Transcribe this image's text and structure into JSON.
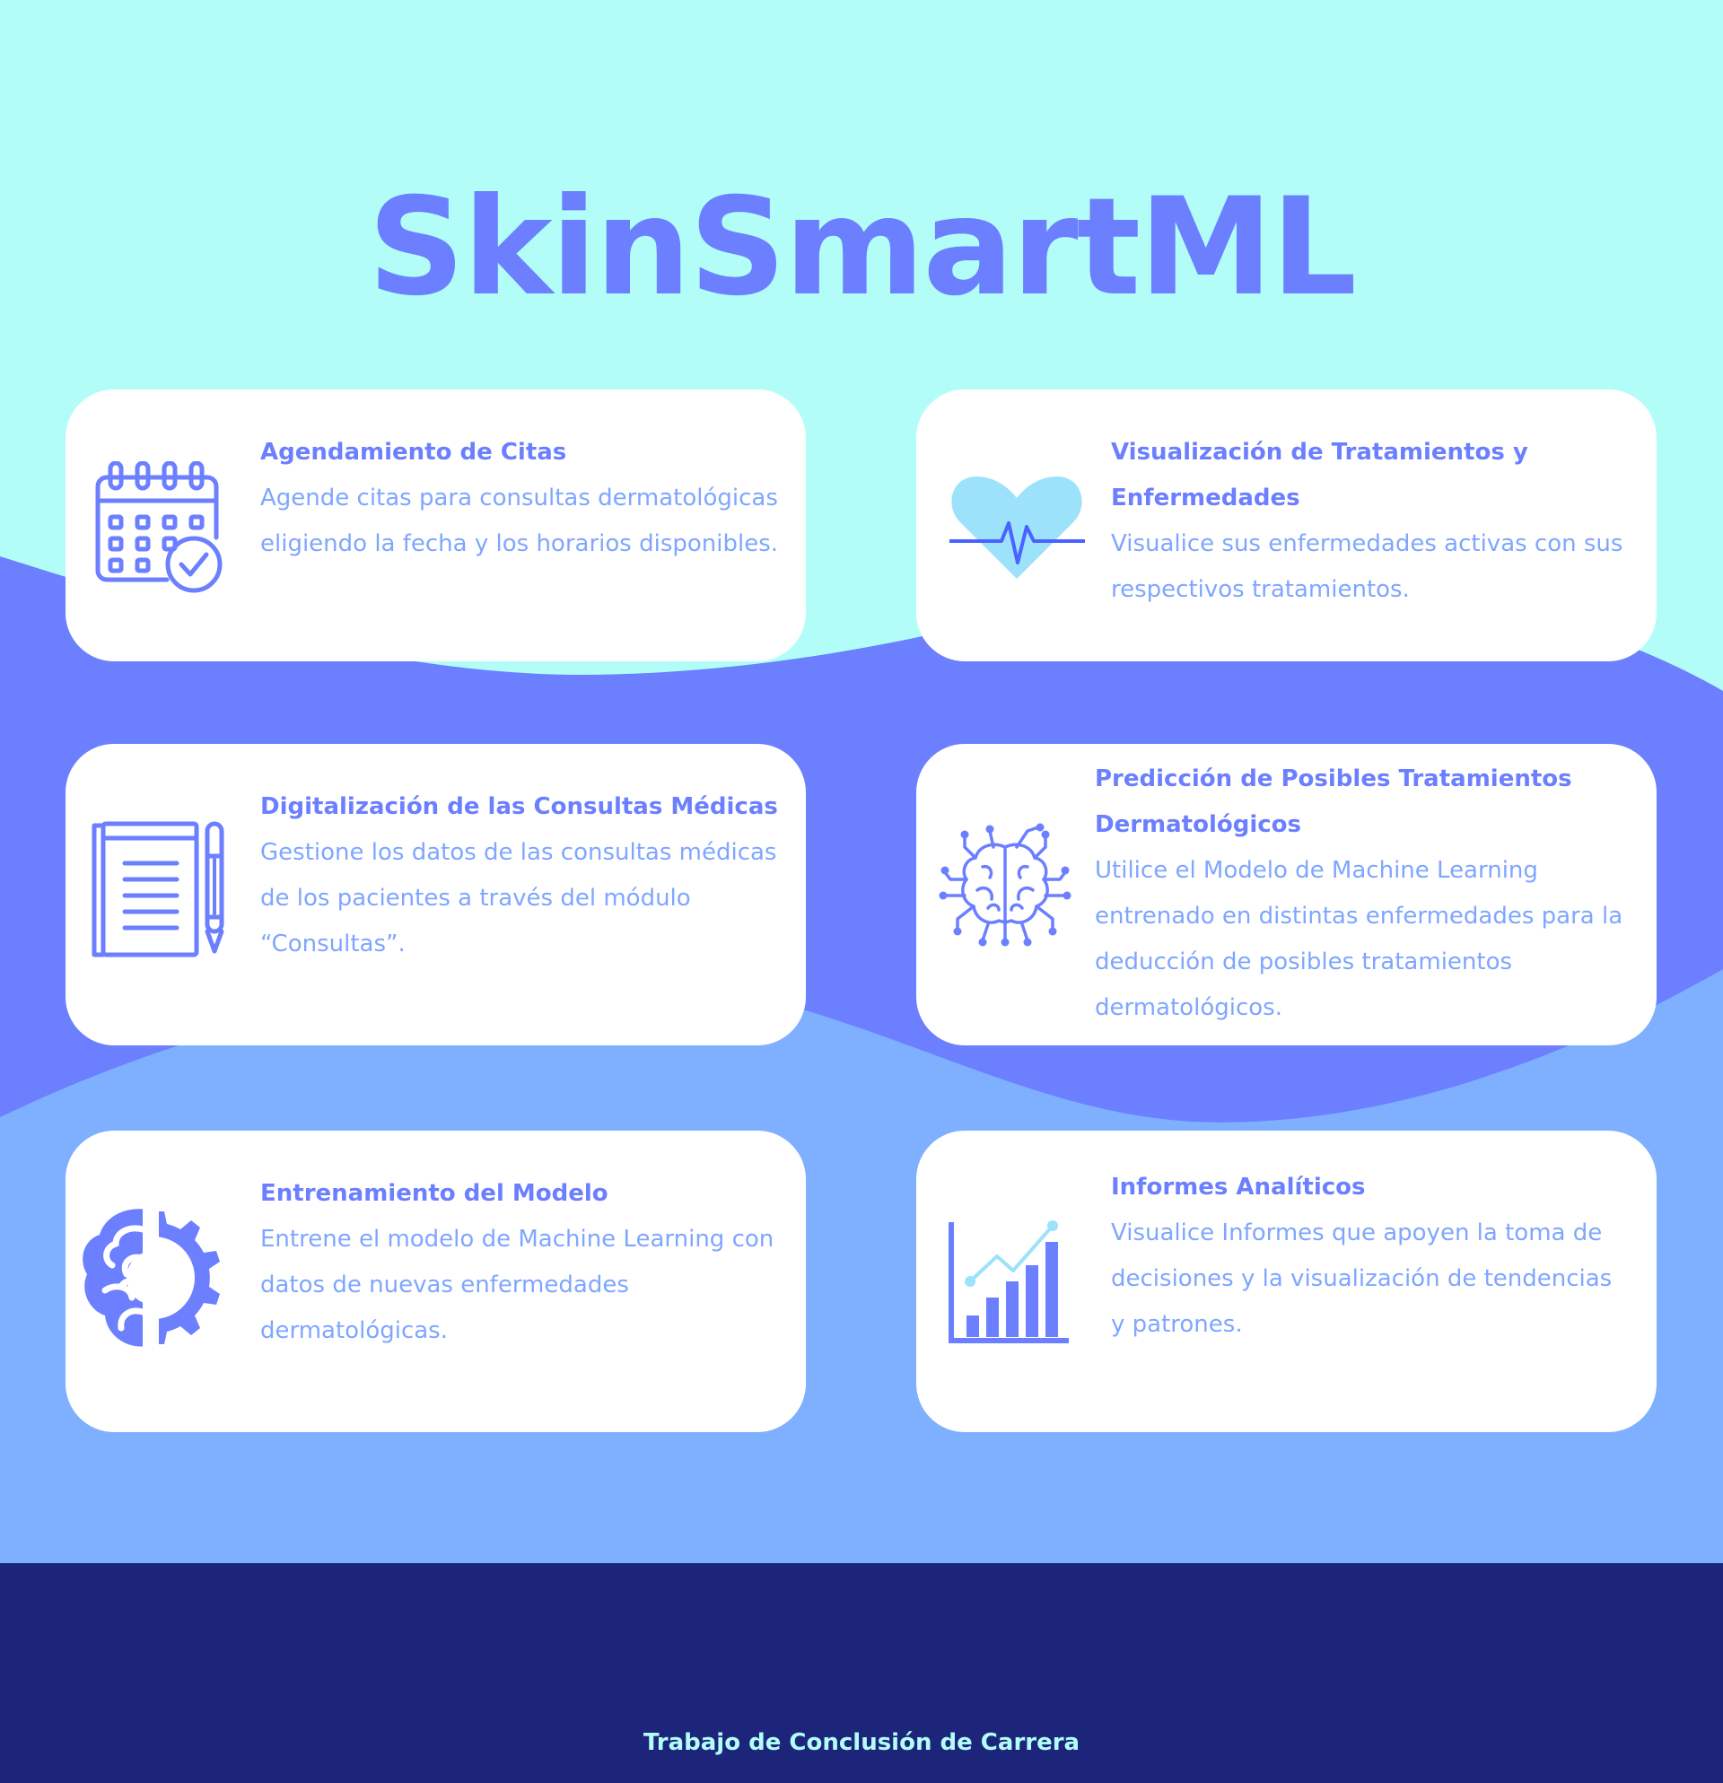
{
  "title": "SkinSmartML",
  "colors": {
    "top_bg": "#b3fdf8",
    "middle_wave": "#6b7fff",
    "lower_bg": "#7fb0ff",
    "footer_bg": "#1c257a",
    "accent": "#6b7fff",
    "body_text": "#7fa6ff"
  },
  "cards": [
    {
      "icon": "calendar-check-icon",
      "title": "Agendamiento de Citas",
      "description": "Agende citas para consultas dermatológicas eligiendo la fecha y los horarios disponibles."
    },
    {
      "icon": "heartbeat-icon",
      "title": "Visualización de Tratamientos y Enfermedades",
      "description": "Visualice sus enfermedades activas con sus respectivos tratamientos."
    },
    {
      "icon": "notebook-pen-icon",
      "title": "Digitalización de las Consultas Médicas",
      "description": "Gestione los datos de las consultas médicas de los pacientes a través del módulo “Consultas”."
    },
    {
      "icon": "circuit-brain-icon",
      "title": "Predicción de Posibles Tratamientos Dermatológicos",
      "description": "Utilice el Modelo de Machine Learning entrenado en distintas enfermedades para la deducción de posibles tratamientos dermatológicos."
    },
    {
      "icon": "brain-gear-icon",
      "title": "Entrenamiento del Modelo",
      "description": "Entrene el modelo de Machine Learning con datos de nuevas enfermedades dermatológicas."
    },
    {
      "icon": "analytics-chart-icon",
      "title": "Informes Analíticos",
      "description": "Visualice Informes que apoyen la toma de decisiones y la visualización de tendencias y patrones."
    }
  ],
  "footer": {
    "text": "Trabajo de Conclusión de Carrera"
  }
}
